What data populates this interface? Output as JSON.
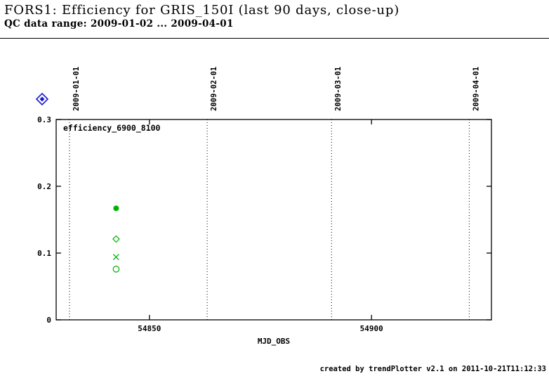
{
  "header": {
    "title": "FORS1: Efficiency for GRIS_150I (last 90 days, close-up)",
    "subtitle": "QC data range: 2009-01-02 ... 2009-04-01"
  },
  "footer": {
    "credit": "created by trendPlotter v2.1 on 2011-10-21T11:12:33"
  },
  "chart_data": {
    "type": "scatter",
    "title": "FORS1: Efficiency for GRIS_150I (last 90 days, close-up)",
    "series_label": "efficiency_6900_8100",
    "xlabel": "MJD_OBS",
    "ylabel": "",
    "xlim": [
      54829,
      54927
    ],
    "ylim": [
      0,
      0.3
    ],
    "grid": "vertical dotted month lines",
    "legend_position": "none",
    "xticks": [
      {
        "value": 54850,
        "label": "54850"
      },
      {
        "value": 54900,
        "label": "54900"
      }
    ],
    "yticks": [
      {
        "value": 0,
        "label": "0"
      },
      {
        "value": 0.1,
        "label": "0.1"
      },
      {
        "value": 0.2,
        "label": "0.2"
      },
      {
        "value": 0.3,
        "label": "0.3"
      }
    ],
    "date_lines": [
      {
        "mjd": 54832,
        "label": "2009-01-01"
      },
      {
        "mjd": 54863,
        "label": "2009-02-01"
      },
      {
        "mjd": 54891,
        "label": "2009-03-01"
      },
      {
        "mjd": 54922,
        "label": "2009-04-01"
      }
    ],
    "marker_color": "#00b300",
    "nav_marker_color": "#1a1acd",
    "axis_color": "#000000",
    "series": [
      {
        "name": "efficiency filled circle",
        "marker": "filled-circle",
        "points": [
          {
            "mjd": 54842.5,
            "value": 0.167
          }
        ]
      },
      {
        "name": "efficiency open diamond",
        "marker": "open-diamond",
        "points": [
          {
            "mjd": 54842.5,
            "value": 0.121
          }
        ]
      },
      {
        "name": "efficiency cross",
        "marker": "cross",
        "points": [
          {
            "mjd": 54842.5,
            "value": 0.094
          }
        ]
      },
      {
        "name": "efficiency open circle",
        "marker": "open-circle",
        "points": [
          {
            "mjd": 54842.5,
            "value": 0.076
          }
        ]
      }
    ]
  }
}
